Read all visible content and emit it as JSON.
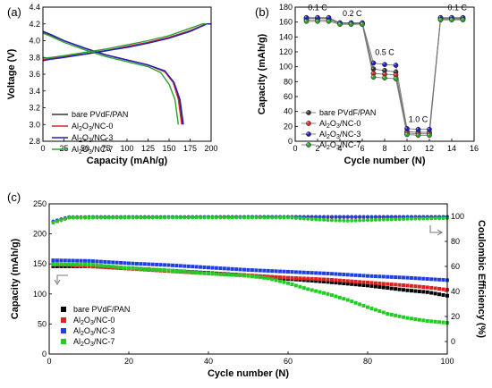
{
  "chart_data": [
    {
      "panel": "(a)",
      "type": "line",
      "xlabel": "Capacity (mAh/g)",
      "ylabel": "Voltage (V)",
      "xlim": [
        0,
        200
      ],
      "ylim": [
        2.8,
        4.4
      ],
      "xticks": [
        "0",
        "25",
        "50",
        "75",
        "100",
        "125",
        "150",
        "175",
        "200"
      ],
      "yticks": [
        "2.8",
        "3.0",
        "3.2",
        "3.4",
        "3.6",
        "3.8",
        "4.0",
        "4.2",
        "4.4"
      ],
      "legend": [
        {
          "label": "bare PVdF/PAN",
          "color": "#333333"
        },
        {
          "label_parts": [
            "Al",
            "2",
            "O",
            "3",
            "/NC-0"
          ],
          "color": "#d62728"
        },
        {
          "label_parts": [
            "Al",
            "2",
            "O",
            "3",
            "/NC-3"
          ],
          "color": "#1f1fbf"
        },
        {
          "label_parts": [
            "Al",
            "2",
            "O",
            "3",
            "/NC-7"
          ],
          "color": "#2ca02c"
        }
      ],
      "series": [
        {
          "name": "bare PVdF/PAN",
          "color": "#333333",
          "charge": [
            [
              0,
              3.77
            ],
            [
              10,
              3.79
            ],
            [
              25,
              3.81
            ],
            [
              50,
              3.84
            ],
            [
              75,
              3.88
            ],
            [
              100,
              3.93
            ],
            [
              125,
              3.98
            ],
            [
              150,
              4.04
            ],
            [
              175,
              4.12
            ],
            [
              195,
              4.2
            ],
            [
              200,
              4.2
            ]
          ],
          "discharge": [
            [
              0,
              4.11
            ],
            [
              10,
              4.07
            ],
            [
              25,
              4.0
            ],
            [
              50,
              3.91
            ],
            [
              75,
              3.83
            ],
            [
              100,
              3.77
            ],
            [
              125,
              3.71
            ],
            [
              145,
              3.63
            ],
            [
              155,
              3.5
            ],
            [
              162,
              3.3
            ],
            [
              166,
              3.0
            ]
          ]
        },
        {
          "name": "Al2O3/NC-0",
          "color": "#d62728",
          "charge": [
            [
              0,
              3.77
            ],
            [
              10,
              3.79
            ],
            [
              25,
              3.81
            ],
            [
              50,
              3.84
            ],
            [
              75,
              3.88
            ],
            [
              100,
              3.93
            ],
            [
              125,
              3.98
            ],
            [
              150,
              4.04
            ],
            [
              175,
              4.12
            ],
            [
              195,
              4.2
            ],
            [
              200,
              4.2
            ]
          ],
          "discharge": [
            [
              0,
              4.1
            ],
            [
              10,
              4.06
            ],
            [
              25,
              4.0
            ],
            [
              50,
              3.91
            ],
            [
              75,
              3.83
            ],
            [
              100,
              3.77
            ],
            [
              125,
              3.71
            ],
            [
              145,
              3.63
            ],
            [
              155,
              3.5
            ],
            [
              161,
              3.3
            ],
            [
              165,
              3.0
            ]
          ]
        },
        {
          "name": "Al2O3/NC-3",
          "color": "#1f1fbf",
          "charge": [
            [
              0,
              3.76
            ],
            [
              10,
              3.78
            ],
            [
              25,
              3.8
            ],
            [
              50,
              3.84
            ],
            [
              75,
              3.88
            ],
            [
              100,
              3.92
            ],
            [
              125,
              3.97
            ],
            [
              150,
              4.03
            ],
            [
              175,
              4.11
            ],
            [
              195,
              4.2
            ],
            [
              200,
              4.2
            ]
          ],
          "discharge": [
            [
              0,
              4.11
            ],
            [
              10,
              4.07
            ],
            [
              25,
              4.0
            ],
            [
              50,
              3.91
            ],
            [
              75,
              3.83
            ],
            [
              100,
              3.77
            ],
            [
              125,
              3.71
            ],
            [
              145,
              3.64
            ],
            [
              156,
              3.5
            ],
            [
              163,
              3.3
            ],
            [
              167,
              3.0
            ]
          ]
        },
        {
          "name": "Al2O3/NC-7",
          "color": "#2ca02c",
          "charge": [
            [
              0,
              3.79
            ],
            [
              10,
              3.8
            ],
            [
              25,
              3.82
            ],
            [
              50,
              3.86
            ],
            [
              75,
              3.9
            ],
            [
              100,
              3.95
            ],
            [
              125,
              4.0
            ],
            [
              150,
              4.06
            ],
            [
              170,
              4.13
            ],
            [
              190,
              4.2
            ],
            [
              195,
              4.2
            ]
          ],
          "discharge": [
            [
              0,
              4.09
            ],
            [
              10,
              4.05
            ],
            [
              25,
              3.98
            ],
            [
              50,
              3.89
            ],
            [
              75,
              3.81
            ],
            [
              100,
              3.75
            ],
            [
              125,
              3.69
            ],
            [
              140,
              3.62
            ],
            [
              150,
              3.48
            ],
            [
              157,
              3.3
            ],
            [
              161,
              3.0
            ]
          ]
        }
      ]
    },
    {
      "panel": "(b)",
      "type": "scatter",
      "xlabel": "Cycle number (N)",
      "ylabel": "Capacity (mAh/g)",
      "xlim": [
        0,
        16
      ],
      "ylim": [
        0,
        180
      ],
      "xticks": [
        "0",
        "2",
        "4",
        "6",
        "8",
        "10",
        "12",
        "14",
        "16"
      ],
      "yticks": [
        "0",
        "20",
        "40",
        "60",
        "80",
        "100",
        "120",
        "140",
        "160",
        "180"
      ],
      "annotations": [
        "0.1 C",
        "0.2 C",
        "0.5 C",
        "1.0 C",
        "0.1 C"
      ],
      "x": [
        1,
        2,
        3,
        4,
        5,
        6,
        7,
        8,
        9,
        10,
        11,
        12,
        13,
        14,
        15
      ],
      "series": [
        {
          "name": "bare PVdF/PAN",
          "color": "#333333",
          "values": [
            165,
            165,
            165,
            158,
            158,
            158,
            97,
            95,
            93,
            13,
            12,
            12,
            165,
            165,
            165
          ]
        },
        {
          "name": "Al2O3/NC-0",
          "color": "#d62728",
          "values": [
            163,
            163,
            163,
            158,
            158,
            157,
            91,
            90,
            89,
            11,
            10,
            10,
            164,
            164,
            164
          ]
        },
        {
          "name": "Al2O3/NC-3",
          "color": "#1f1fbf",
          "values": [
            166,
            166,
            166,
            159,
            159,
            159,
            105,
            103,
            102,
            17,
            16,
            16,
            166,
            166,
            166
          ]
        },
        {
          "name": "Al2O3/NC-7",
          "color": "#2ca02c",
          "values": [
            161,
            161,
            161,
            157,
            157,
            157,
            86,
            85,
            84,
            9,
            8,
            8,
            163,
            163,
            163
          ]
        }
      ]
    },
    {
      "panel": "(c)",
      "type": "scatter",
      "xlabel": "Cycle number (N)",
      "ylabel": "Capacity (mAh/g)",
      "y2label": "Coulombic Efficiency (%)",
      "xlim": [
        0,
        100
      ],
      "ylim": [
        0,
        250
      ],
      "y2lim": [
        -10,
        110
      ],
      "xticks": [
        "0",
        "20",
        "40",
        "60",
        "80",
        "100"
      ],
      "yticks": [
        "0",
        "50",
        "100",
        "150",
        "200",
        "250"
      ],
      "y2ticks": [
        "0",
        "20",
        "40",
        "60",
        "80",
        "100"
      ],
      "legend": [
        {
          "label": "bare PVdF/PAN",
          "color": "#000000"
        },
        {
          "label_parts": [
            "Al",
            "2",
            "O",
            "3",
            "/NC-0"
          ],
          "color": "#e02020"
        },
        {
          "label_parts": [
            "Al",
            "2",
            "O",
            "3",
            "/NC-3"
          ],
          "color": "#1f3fe0"
        },
        {
          "label_parts": [
            "Al",
            "2",
            "O",
            "3",
            "/NC-7"
          ],
          "color": "#22cc22"
        }
      ],
      "capacity_series": [
        {
          "name": "bare PVdF/PAN",
          "color": "#000000",
          "points": [
            [
              1,
              146
            ],
            [
              10,
              146
            ],
            [
              20,
              143
            ],
            [
              30,
              139
            ],
            [
              40,
              135
            ],
            [
              50,
              131
            ],
            [
              60,
              125
            ],
            [
              70,
              120
            ],
            [
              80,
              114
            ],
            [
              90,
              106
            ],
            [
              95,
              103
            ],
            [
              100,
              97
            ]
          ]
        },
        {
          "name": "Al2O3/NC-0",
          "color": "#e02020",
          "points": [
            [
              1,
              150
            ],
            [
              10,
              146
            ],
            [
              20,
              142
            ],
            [
              30,
              138
            ],
            [
              40,
              134
            ],
            [
              50,
              131
            ],
            [
              60,
              127
            ],
            [
              70,
              124
            ],
            [
              80,
              119
            ],
            [
              90,
              114
            ],
            [
              95,
              111
            ],
            [
              100,
              107
            ]
          ]
        },
        {
          "name": "Al2O3/NC-3",
          "color": "#1f3fe0",
          "points": [
            [
              1,
              156
            ],
            [
              10,
              155
            ],
            [
              20,
              151
            ],
            [
              30,
              148
            ],
            [
              40,
              144
            ],
            [
              50,
              140
            ],
            [
              60,
              137
            ],
            [
              70,
              134
            ],
            [
              80,
              130
            ],
            [
              90,
              127
            ],
            [
              95,
              125
            ],
            [
              100,
              123
            ]
          ]
        },
        {
          "name": "Al2O3/NC-7",
          "color": "#22cc22",
          "points": [
            [
              1,
              149
            ],
            [
              10,
              149
            ],
            [
              20,
              143
            ],
            [
              30,
              139
            ],
            [
              40,
              134
            ],
            [
              50,
              130
            ],
            [
              55,
              126
            ],
            [
              60,
              118
            ],
            [
              65,
              108
            ],
            [
              70,
              100
            ],
            [
              75,
              90
            ],
            [
              80,
              78
            ],
            [
              85,
              67
            ],
            [
              90,
              60
            ],
            [
              95,
              55
            ],
            [
              100,
              52
            ]
          ]
        }
      ],
      "efficiency_series": [
        {
          "name": "bare PVdF/PAN",
          "color": "#000000",
          "points": [
            [
              1,
              95
            ],
            [
              5,
              99
            ],
            [
              50,
              99.5
            ],
            [
              100,
              99.5
            ]
          ]
        },
        {
          "name": "Al2O3/NC-0",
          "color": "#e02020",
          "points": [
            [
              1,
              95
            ],
            [
              5,
              99
            ],
            [
              50,
              99.5
            ],
            [
              100,
              99.5
            ]
          ]
        },
        {
          "name": "Al2O3/NC-3",
          "color": "#1f3fe0",
          "points": [
            [
              1,
              96
            ],
            [
              5,
              99.5
            ],
            [
              50,
              99.6
            ],
            [
              100,
              99.6
            ]
          ]
        },
        {
          "name": "Al2O3/NC-7",
          "color": "#22cc22",
          "points": [
            [
              1,
              95
            ],
            [
              5,
              99
            ],
            [
              60,
              99
            ],
            [
              65,
              98
            ],
            [
              70,
              97
            ],
            [
              75,
              96.5
            ],
            [
              80,
              97
            ],
            [
              90,
              98
            ],
            [
              100,
              98.5
            ]
          ]
        }
      ]
    }
  ]
}
